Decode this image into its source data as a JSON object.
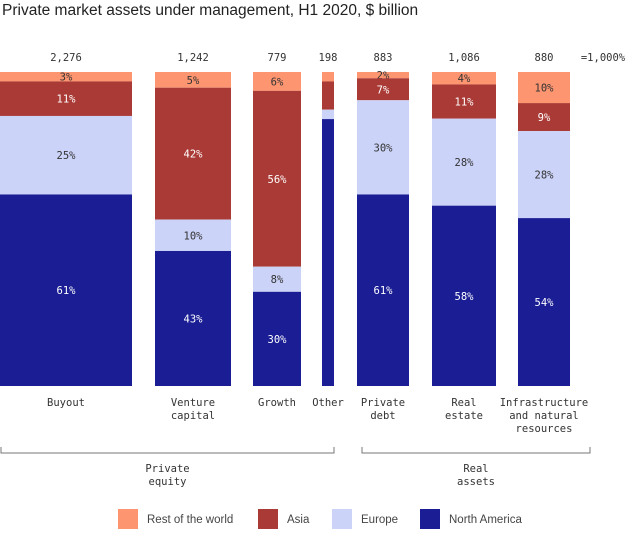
{
  "title": "Private market assets under management, H1 2020, $ billion",
  "chart_data": {
    "type": "bar",
    "subtype": "marimekko",
    "title": "Private market assets under management, H1 2020, $ billion",
    "unit_note": "=1,000%",
    "categories": [
      {
        "label": [
          "Buyout"
        ],
        "total": 2276,
        "total_label": "2,276"
      },
      {
        "label": [
          "Venture",
          "capital"
        ],
        "total": 1242,
        "total_label": "1,242"
      },
      {
        "label": [
          "Growth"
        ],
        "total": 779,
        "total_label": "779"
      },
      {
        "label": [
          "Other"
        ],
        "total": 198,
        "total_label": "198"
      },
      {
        "label": [
          "Private",
          "debt"
        ],
        "total": 883,
        "total_label": "883"
      },
      {
        "label": [
          "Real",
          "estate"
        ],
        "total": 1086,
        "total_label": "1,086"
      },
      {
        "label": [
          "Infrastructure",
          "and natural",
          "resources"
        ],
        "total": 880,
        "total_label": "880"
      }
    ],
    "series": [
      {
        "name": "Rest of the world",
        "color": "#fd9570",
        "values": [
          3,
          5,
          6,
          3,
          2,
          4,
          10
        ],
        "labels": [
          "3%",
          "5%",
          "6%",
          "",
          "2%",
          "4%",
          "10%"
        ]
      },
      {
        "name": "Asia",
        "color": "#aa3a35",
        "values": [
          11,
          42,
          56,
          9,
          7,
          11,
          9
        ],
        "labels": [
          "11%",
          "42%",
          "56%",
          "",
          "7%",
          "11%",
          "9%"
        ]
      },
      {
        "name": "Europe",
        "color": "#ccd3f8",
        "values": [
          25,
          10,
          8,
          3,
          30,
          28,
          28
        ],
        "labels": [
          "25%",
          "10%",
          "8%",
          "",
          "30%",
          "28%",
          "28%"
        ]
      },
      {
        "name": "North America",
        "color": "#1a1d93",
        "values": [
          61,
          43,
          30,
          85,
          61,
          58,
          54
        ],
        "labels": [
          "61%",
          "43%",
          "30%",
          "",
          "61%",
          "58%",
          "54%"
        ]
      }
    ],
    "groups": [
      {
        "label": [
          "Private",
          "equity"
        ],
        "categories": [
          0,
          1,
          2,
          3
        ]
      },
      {
        "label": [
          "Real",
          "assets"
        ],
        "categories": [
          4,
          5,
          6
        ]
      }
    ],
    "legend": "bottom"
  }
}
